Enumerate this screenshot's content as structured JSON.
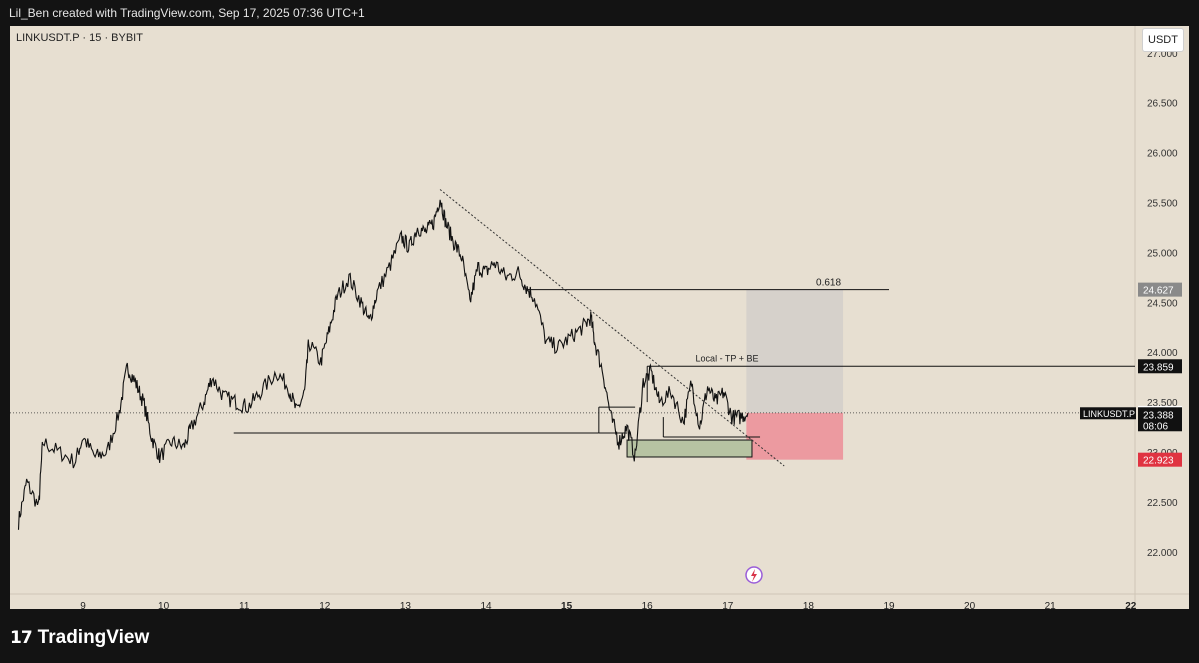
{
  "header": {
    "credit": "Lil_Ben created with TradingView.com, Sep 17, 2025 07:36 UTC+1"
  },
  "chart": {
    "symbol_line": "LINKUSDT.P · 15 · BYBIT",
    "currency": "USDT"
  },
  "footer": {
    "brand": "TradingView"
  },
  "colors": {
    "background": "#e7dfd1",
    "price": "#111111",
    "target_zone": "#d6d1cb",
    "stop_zone": "#ec9aa0",
    "demand_zone": "#b7c3a2",
    "red_label": "#e03341",
    "grey_label": "#8a8a8a"
  },
  "chart_data": {
    "type": "line",
    "title": "LINKUSDT.P · 15 · BYBIT",
    "xlabel": "",
    "ylabel": "",
    "ylim": [
      21.7,
      27.0
    ],
    "xlim": [
      8.2,
      22.1
    ],
    "x_tick_labels": [
      "9",
      "10",
      "11",
      "12",
      "13",
      "14",
      "15",
      "16",
      "17",
      "18",
      "19",
      "20",
      "21",
      "22"
    ],
    "x_tick_values": [
      9,
      10,
      11,
      12,
      13,
      14,
      15,
      16,
      17,
      18,
      19,
      20,
      21,
      22
    ],
    "bold_x_ticks": [
      "15",
      "22"
    ],
    "y_tick_labels": [
      "22.000",
      "22.500",
      "23.000",
      "23.500",
      "24.000",
      "24.500",
      "25.000",
      "25.500",
      "26.000",
      "26.500",
      "27.000"
    ],
    "y_tick_values": [
      22.0,
      22.5,
      23.0,
      23.5,
      24.0,
      24.5,
      25.0,
      25.5,
      26.0,
      26.5,
      27.0
    ],
    "series": [
      {
        "x": [
          8.2,
          8.3,
          8.45,
          8.5,
          8.7,
          8.9,
          9.0,
          9.15,
          9.3,
          9.45,
          9.55,
          9.65,
          9.75,
          9.85,
          9.95,
          10.1,
          10.25,
          10.35,
          10.5,
          10.6,
          10.75,
          10.9,
          11.05,
          11.2,
          11.4,
          11.55,
          11.65,
          11.75,
          11.8,
          11.95,
          12.05,
          12.15,
          12.3,
          12.45,
          12.55,
          12.65,
          12.8,
          12.95,
          13.05,
          13.15,
          13.25,
          13.35,
          13.43,
          13.5,
          13.6,
          13.7,
          13.8,
          13.9,
          14.0,
          14.1,
          14.25,
          14.4,
          14.5,
          14.6,
          14.75,
          14.9,
          15.05,
          15.2,
          15.3,
          15.35,
          15.45,
          15.55,
          15.65,
          15.75,
          15.85,
          15.95,
          16.05,
          16.15,
          16.3,
          16.45,
          16.55,
          16.65,
          16.75,
          16.85,
          16.95,
          17.05,
          17.15,
          17.25
        ],
        "y": [
          22.3,
          22.7,
          22.45,
          23.1,
          23.0,
          22.9,
          23.15,
          22.95,
          23.0,
          23.4,
          23.85,
          23.7,
          23.5,
          23.15,
          22.95,
          23.1,
          23.05,
          23.25,
          23.5,
          23.75,
          23.55,
          23.5,
          23.45,
          23.6,
          23.8,
          23.65,
          23.4,
          23.6,
          24.1,
          23.9,
          24.2,
          24.55,
          24.75,
          24.5,
          24.3,
          24.6,
          24.85,
          25.15,
          25.05,
          25.25,
          25.2,
          25.3,
          25.55,
          25.3,
          25.1,
          24.95,
          24.5,
          24.85,
          24.8,
          24.9,
          24.75,
          24.8,
          24.65,
          24.55,
          24.1,
          24.05,
          24.15,
          24.25,
          24.35,
          24.1,
          23.8,
          23.35,
          23.1,
          23.25,
          22.95,
          23.7,
          23.8,
          23.5,
          23.6,
          23.3,
          23.7,
          23.25,
          23.65,
          23.5,
          23.6,
          23.35,
          23.35,
          23.39
        ]
      }
    ],
    "annotations": {
      "last_price": 23.388,
      "countdown": "08:06",
      "symbol_tag": "LINKUSDT.P",
      "dotted_price_line": 23.392,
      "fib_level": {
        "label": "0.618",
        "price": 24.627
      },
      "tp_level": {
        "label": "Local - TP +  BE",
        "price": 23.859
      },
      "stop_price": 22.923,
      "price_labels": [
        "24.627",
        "23.859",
        "23.392",
        "23.388",
        "22.923"
      ],
      "trendline": {
        "x": [
          13.43,
          17.7
        ],
        "y": [
          25.63,
          22.86
        ]
      },
      "position": {
        "x_start": 17.23,
        "x_end": 18.43,
        "entry": 23.392,
        "target": 24.627,
        "stop": 22.923
      },
      "demand_zone": {
        "x_start": 15.75,
        "x_end": 17.3,
        "y_top": 23.12,
        "y_bottom": 22.95
      },
      "support_lines": [
        {
          "x_start": 10.87,
          "x_end": 15.4,
          "price": 23.19
        },
        {
          "x_start": 15.4,
          "x_end": 15.75,
          "price": 23.19
        },
        {
          "x_start": 16.2,
          "x_end": 17.4,
          "price": 23.15
        }
      ],
      "resistance_lines": [
        {
          "x_start": 14.5,
          "x_end": 19.0,
          "price": 24.627
        },
        {
          "x_start": 16.0,
          "x_end": 22.1,
          "price": 23.859
        }
      ]
    }
  }
}
